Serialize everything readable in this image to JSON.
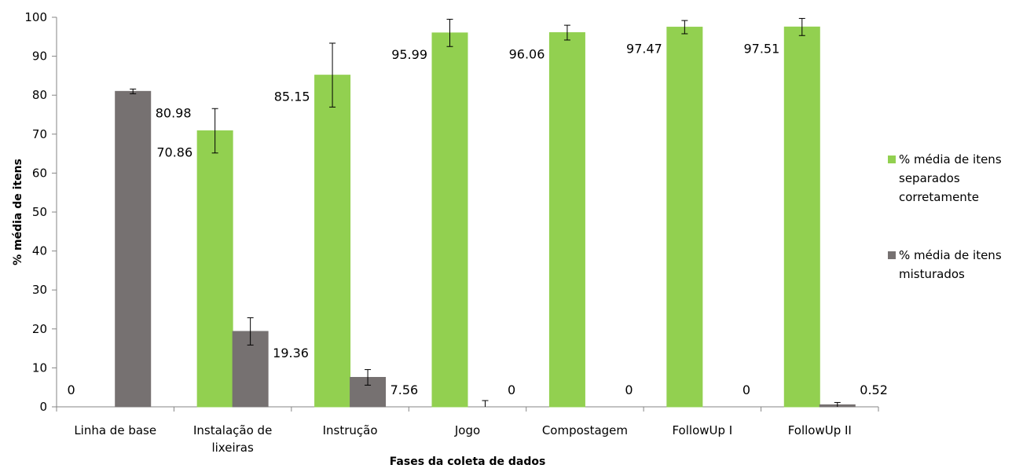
{
  "chart_data": {
    "type": "bar",
    "xlabel": "Fases da coleta de dados",
    "ylabel": "% média de itens",
    "ylim": [
      0,
      100
    ],
    "yticks": [
      0,
      10,
      20,
      30,
      40,
      50,
      60,
      70,
      80,
      90,
      100
    ],
    "categories": [
      [
        "Linha de base"
      ],
      [
        "Instalação de",
        "lixeiras"
      ],
      [
        "Instrução"
      ],
      [
        "Jogo"
      ],
      [
        "Compostagem"
      ],
      [
        "FollowUp I"
      ],
      [
        "FollowUp II"
      ]
    ],
    "series": [
      {
        "name": [
          "% média de itens",
          "separados",
          "corretamente"
        ],
        "color": "#92d050",
        "values": [
          0,
          70.86,
          85.15,
          95.99,
          96.06,
          97.47,
          97.51
        ],
        "labels": [
          "0",
          "70.86",
          "85.15",
          "95.99",
          "96.06",
          "97.47",
          "97.51"
        ],
        "errors": [
          0,
          5.7,
          8.2,
          3.5,
          1.9,
          1.7,
          2.2
        ]
      },
      {
        "name": [
          "% média de itens",
          "misturados"
        ],
        "color": "#767171",
        "values": [
          80.98,
          19.36,
          7.56,
          0,
          0,
          0,
          0.52
        ],
        "labels": [
          "80.98",
          "19.36",
          "7.56",
          "0",
          "0",
          "0",
          "0.52"
        ],
        "errors": [
          0.6,
          3.5,
          2.0,
          1.6,
          0,
          0,
          0.6
        ]
      }
    ],
    "grid": false,
    "legend_position": "right"
  }
}
